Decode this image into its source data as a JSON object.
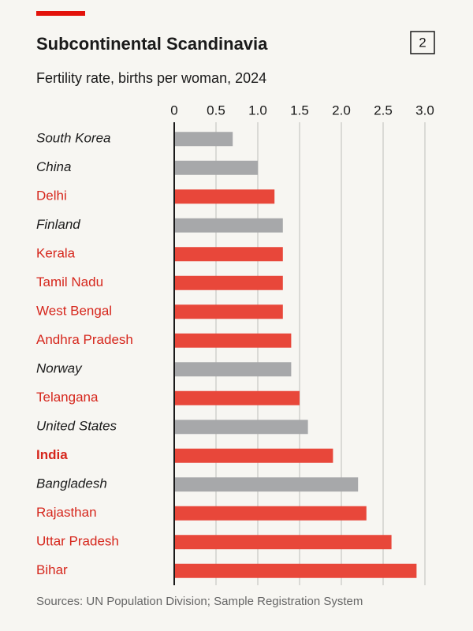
{
  "chart_data": {
    "type": "barh",
    "title": "Subcontinental Scandinavia",
    "figure_number": "2",
    "subtitle": "Fertility rate, births per woman, 2024",
    "source": "Sources: UN Population Division; Sample Registration System",
    "categories": [
      "South Korea",
      "China",
      "Delhi",
      "Finland",
      "Kerala",
      "Tamil Nadu",
      "West Bengal",
      "Andhra Pradesh",
      "Norway",
      "Telangana",
      "United States",
      "India",
      "Bangladesh",
      "Rajasthan",
      "Uttar Pradesh",
      "Bihar"
    ],
    "values": [
      0.7,
      1.0,
      1.2,
      1.3,
      1.3,
      1.3,
      1.3,
      1.4,
      1.4,
      1.5,
      1.6,
      1.9,
      2.2,
      2.3,
      2.6,
      2.9
    ],
    "colors": [
      "#a7a8aa",
      "#a7a8aa",
      "#e8473a",
      "#a7a8aa",
      "#e8473a",
      "#e8473a",
      "#e8473a",
      "#e8473a",
      "#a7a8aa",
      "#e8473a",
      "#a7a8aa",
      "#e8473a",
      "#a7a8aa",
      "#e8473a",
      "#e8473a",
      "#e8473a"
    ],
    "highlight": 11,
    "xlim": [
      0,
      3.0
    ],
    "xticks": [
      0,
      0.5,
      {
        "value": 1,
        "label": "1.0"
      },
      1.5,
      {
        "value": 2,
        "label": "2.0"
      },
      2.5,
      {
        "value": 3,
        "label": "3.0"
      }
    ],
    "grid": true
  }
}
